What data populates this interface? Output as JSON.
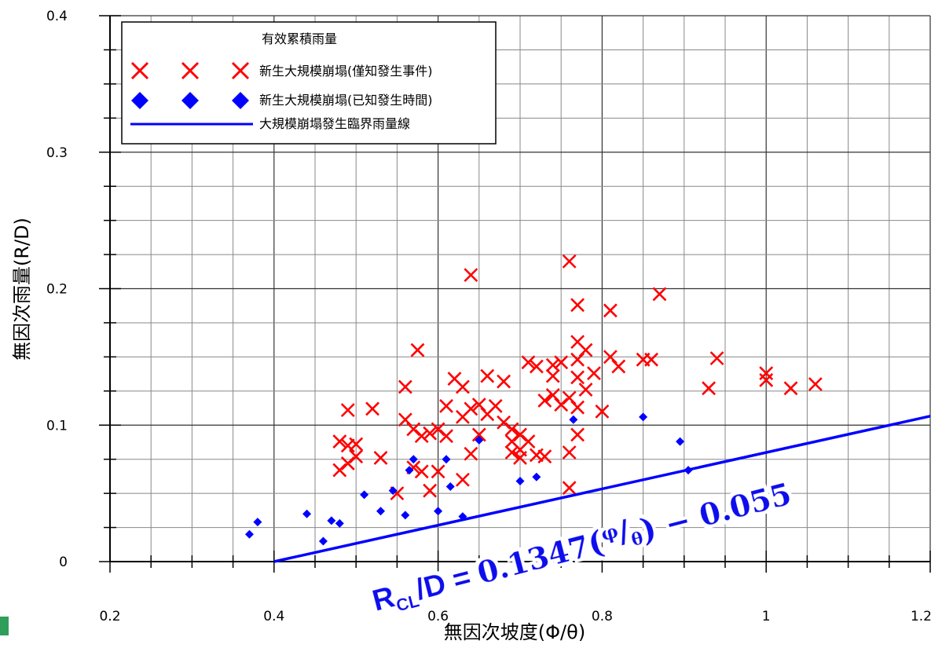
{
  "chart_data": {
    "type": "scatter",
    "xlabel": "無因次坡度(Φ/θ)",
    "ylabel": "無因次雨量(R/D)",
    "xlim": [
      0.2,
      1.2
    ],
    "ylim": [
      0,
      0.4
    ],
    "x_ticks": [
      "0.2",
      "0.4",
      "0.6",
      "0.8",
      "1",
      "1.2"
    ],
    "y_ticks": [
      "0",
      "0.1",
      "0.2",
      "0.3",
      "0.4"
    ],
    "grid": true,
    "legend": {
      "title": "有效累積雨量",
      "placement": "top-left",
      "entries": [
        {
          "label": "新生大規模崩塌(僅知發生事件)",
          "marker": "x",
          "color": "#ff0000"
        },
        {
          "label": "新生大規模崩塌(已知發生時間)",
          "marker": "diamond",
          "color": "#0000ff"
        },
        {
          "label": "大規模崩塌發生臨界雨量線",
          "marker": "line",
          "color": "#0000ff"
        }
      ]
    },
    "series": [
      {
        "name": "新生大規模崩塌(僅知發生事件)",
        "marker": "x",
        "color": "#ff0000",
        "points": [
          [
            0.48,
            0.088
          ],
          [
            0.48,
            0.067
          ],
          [
            0.49,
            0.085
          ],
          [
            0.49,
            0.072
          ],
          [
            0.5,
            0.086
          ],
          [
            0.5,
            0.077
          ],
          [
            0.49,
            0.111
          ],
          [
            0.52,
            0.112
          ],
          [
            0.53,
            0.076
          ],
          [
            0.55,
            0.05
          ],
          [
            0.56,
            0.104
          ],
          [
            0.56,
            0.128
          ],
          [
            0.57,
            0.097
          ],
          [
            0.57,
            0.069
          ],
          [
            0.575,
            0.155
          ],
          [
            0.58,
            0.092
          ],
          [
            0.58,
            0.066
          ],
          [
            0.59,
            0.052
          ],
          [
            0.59,
            0.094
          ],
          [
            0.6,
            0.066
          ],
          [
            0.6,
            0.097
          ],
          [
            0.61,
            0.114
          ],
          [
            0.61,
            0.092
          ],
          [
            0.62,
            0.134
          ],
          [
            0.63,
            0.128
          ],
          [
            0.63,
            0.106
          ],
          [
            0.63,
            0.06
          ],
          [
            0.64,
            0.079
          ],
          [
            0.64,
            0.21
          ],
          [
            0.64,
            0.112
          ],
          [
            0.65,
            0.115
          ],
          [
            0.65,
            0.093
          ],
          [
            0.66,
            0.136
          ],
          [
            0.66,
            0.108
          ],
          [
            0.67,
            0.114
          ],
          [
            0.68,
            0.102
          ],
          [
            0.68,
            0.132
          ],
          [
            0.69,
            0.088
          ],
          [
            0.69,
            0.097
          ],
          [
            0.69,
            0.08
          ],
          [
            0.7,
            0.082
          ],
          [
            0.7,
            0.093
          ],
          [
            0.7,
            0.076
          ],
          [
            0.71,
            0.146
          ],
          [
            0.71,
            0.088
          ],
          [
            0.72,
            0.143
          ],
          [
            0.72,
            0.078
          ],
          [
            0.73,
            0.118
          ],
          [
            0.73,
            0.077
          ],
          [
            0.74,
            0.144
          ],
          [
            0.74,
            0.136
          ],
          [
            0.74,
            0.122
          ],
          [
            0.75,
            0.146
          ],
          [
            0.75,
            0.115
          ],
          [
            0.76,
            0.22
          ],
          [
            0.76,
            0.12
          ],
          [
            0.76,
            0.08
          ],
          [
            0.76,
            0.054
          ],
          [
            0.77,
            0.188
          ],
          [
            0.77,
            0.161
          ],
          [
            0.77,
            0.148
          ],
          [
            0.77,
            0.135
          ],
          [
            0.77,
            0.113
          ],
          [
            0.77,
            0.093
          ],
          [
            0.78,
            0.155
          ],
          [
            0.78,
            0.126
          ],
          [
            0.79,
            0.138
          ],
          [
            0.8,
            0.11
          ],
          [
            0.81,
            0.184
          ],
          [
            0.81,
            0.15
          ],
          [
            0.82,
            0.143
          ],
          [
            0.85,
            0.148
          ],
          [
            0.86,
            0.148
          ],
          [
            0.87,
            0.196
          ],
          [
            0.93,
            0.127
          ],
          [
            0.94,
            0.149
          ],
          [
            1.0,
            0.138
          ],
          [
            1.0,
            0.133
          ],
          [
            1.03,
            0.127
          ],
          [
            1.06,
            0.13
          ]
        ]
      },
      {
        "name": "新生大規模崩塌(已知發生時間)",
        "marker": "diamond",
        "color": "#0000ff",
        "points": [
          [
            0.37,
            0.02
          ],
          [
            0.38,
            0.029
          ],
          [
            0.44,
            0.035
          ],
          [
            0.46,
            0.015
          ],
          [
            0.47,
            0.03
          ],
          [
            0.48,
            0.028
          ],
          [
            0.51,
            0.049
          ],
          [
            0.53,
            0.037
          ],
          [
            0.545,
            0.052
          ],
          [
            0.56,
            0.034
          ],
          [
            0.565,
            0.067
          ],
          [
            0.57,
            0.075
          ],
          [
            0.6,
            0.037
          ],
          [
            0.61,
            0.075
          ],
          [
            0.615,
            0.055
          ],
          [
            0.63,
            0.033
          ],
          [
            0.65,
            0.089
          ],
          [
            0.7,
            0.059
          ],
          [
            0.72,
            0.062
          ],
          [
            0.765,
            0.104
          ],
          [
            0.85,
            0.106
          ],
          [
            0.895,
            0.088
          ],
          [
            0.905,
            0.067
          ]
        ]
      },
      {
        "name": "大規模崩塌發生臨界雨量線",
        "marker": "line",
        "color": "#0000ff",
        "x": [
          0.4,
          1.2
        ],
        "y": [
          0.0,
          0.1066
        ]
      }
    ],
    "annotation": {
      "lhs_r": "R",
      "lhs_sub": "CL",
      "lhs_rest": "/D = ",
      "coef": "0.1347",
      "phi": "φ",
      "theta": "θ",
      "tail": " − 0.055",
      "color": "#1010ee"
    }
  }
}
